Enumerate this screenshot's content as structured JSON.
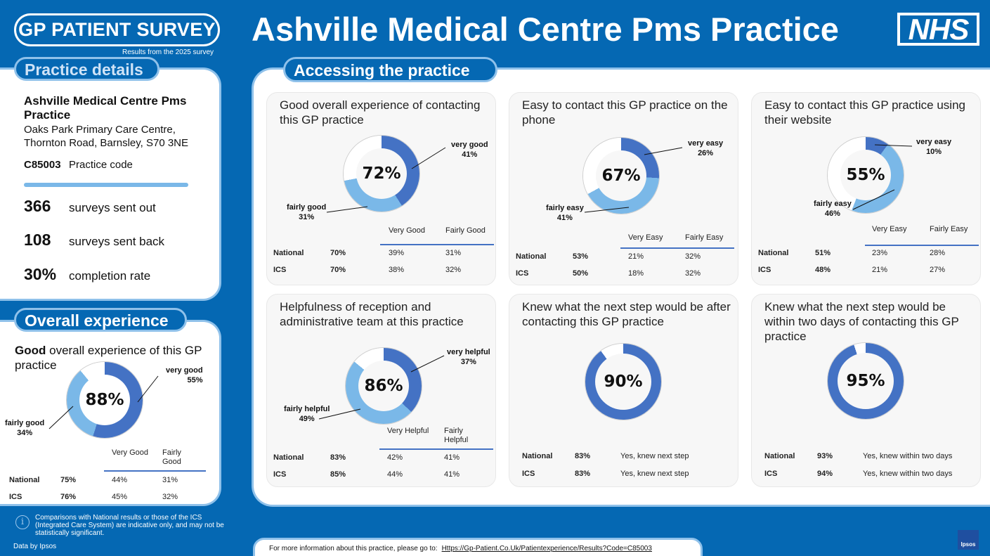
{
  "header": {
    "survey_logo": "GP PATIENT SURVEY",
    "survey_sub": "Results from the 2025 survey",
    "title": "Ashville Medical Centre Pms Practice",
    "nhs_logo": "NHS"
  },
  "practice_details": {
    "heading": "Practice details",
    "name": "Ashville Medical Centre Pms Practice",
    "address": "Oaks Park Primary Care Centre, Thornton Road, Barnsley, S70 3NE",
    "code": "C85003",
    "code_label": "Practice code",
    "stats": [
      {
        "value": "366",
        "label": "surveys sent out"
      },
      {
        "value": "108",
        "label": "surveys sent back"
      },
      {
        "value": "30%",
        "label": "completion rate"
      }
    ]
  },
  "overall_experience": {
    "heading": "Overall experience",
    "title_bold": "Good",
    "title_rest": " overall experience of this GP practice",
    "total": "88%",
    "seg1": {
      "label": "very good",
      "pct": "55%",
      "value": 55
    },
    "seg2": {
      "label": "fairly good",
      "pct": "34%",
      "value": 34
    },
    "col1": "Very Good",
    "col2": "Fairly Good",
    "rows": [
      {
        "name": "National",
        "total": "75%",
        "c1": "44%",
        "c2": "31%"
      },
      {
        "name": "ICS",
        "total": "76%",
        "c1": "45%",
        "c2": "32%"
      }
    ]
  },
  "accessing": {
    "heading": "Accessing the practice",
    "cards": [
      {
        "title": "Good overall experience of contacting this GP practice",
        "total": "72%",
        "seg1": {
          "label": "very good",
          "pct": "41%",
          "value": 41
        },
        "seg2": {
          "label": "fairly good",
          "pct": "31%",
          "value": 31
        },
        "col1": "Very Good",
        "col2": "Fairly Good",
        "rows": [
          {
            "name": "National",
            "total": "70%",
            "c1": "39%",
            "c2": "31%"
          },
          {
            "name": "ICS",
            "total": "70%",
            "c1": "38%",
            "c2": "32%"
          }
        ]
      },
      {
        "title": "Easy to contact this GP practice on the phone",
        "total": "67%",
        "seg1": {
          "label": "very easy",
          "pct": "26%",
          "value": 26
        },
        "seg2": {
          "label": "fairly easy",
          "pct": "41%",
          "value": 41
        },
        "col1": "Very Easy",
        "col2": "Fairly Easy",
        "rows": [
          {
            "name": "National",
            "total": "53%",
            "c1": "21%",
            "c2": "32%"
          },
          {
            "name": "ICS",
            "total": "50%",
            "c1": "18%",
            "c2": "32%"
          }
        ]
      },
      {
        "title": "Easy to contact this GP practice using their website",
        "total": "55%",
        "seg1": {
          "label": "very easy",
          "pct": "10%",
          "value": 10
        },
        "seg2": {
          "label": "fairly easy",
          "pct": "46%",
          "value": 46
        },
        "col1": "Very Easy",
        "col2": "Fairly Easy",
        "rows": [
          {
            "name": "National",
            "total": "51%",
            "c1": "23%",
            "c2": "28%"
          },
          {
            "name": "ICS",
            "total": "48%",
            "c1": "21%",
            "c2": "27%"
          }
        ]
      },
      {
        "title": "Helpfulness of reception and administrative team at this practice",
        "total": "86%",
        "seg1": {
          "label": "very helpful",
          "pct": "37%",
          "value": 37
        },
        "seg2": {
          "label": "fairly helpful",
          "pct": "49%",
          "value": 49
        },
        "col1": "Very Helpful",
        "col2": "Fairly Helpful",
        "rows": [
          {
            "name": "National",
            "total": "83%",
            "c1": "42%",
            "c2": "41%"
          },
          {
            "name": "ICS",
            "total": "85%",
            "c1": "44%",
            "c2": "41%"
          }
        ]
      },
      {
        "title": "Knew what the next step would be after contacting this GP practice",
        "total": "90%",
        "value": 90,
        "rows": [
          {
            "name": "National",
            "total": "83%",
            "desc": "Yes, knew next step"
          },
          {
            "name": "ICS",
            "total": "83%",
            "desc": "Yes, knew next step"
          }
        ]
      },
      {
        "title": "Knew what the next step would be within two days of contacting this GP practice",
        "total": "95%",
        "value": 95,
        "rows": [
          {
            "name": "National",
            "total": "93%",
            "desc": "Yes, knew within two days"
          },
          {
            "name": "ICS",
            "total": "94%",
            "desc": "Yes, knew within two days"
          }
        ]
      }
    ]
  },
  "footer": {
    "info": "Comparisons with National results or those of the ICS (Integrated Care System) are indicative only, and may not be statistically significant.",
    "info_icon": "i",
    "data_by": "Data by Ipsos",
    "more_info": "For more information about this practice, please go to:",
    "link": "Https://Gp-Patient.Co.Uk/Patientexperience/Results?Code=C85003",
    "ipsos_logo": "Ipsos"
  },
  "colors": {
    "dark_blue": "#4472c4",
    "light_blue": "#7ab8e8",
    "brand_blue": "#0568b3",
    "remainder": "#ffffff"
  }
}
